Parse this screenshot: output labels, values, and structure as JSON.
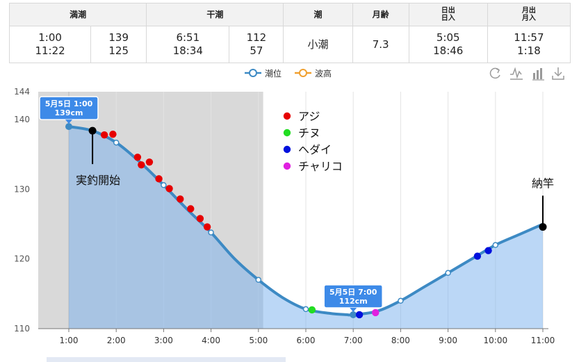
{
  "table": {
    "headers": {
      "high": "満潮",
      "low": "干潮",
      "tide": "潮",
      "moon_age": "月齢",
      "sun_line1": "日出",
      "sun_line2": "日入",
      "moon_line1": "月出",
      "moon_line2": "月入"
    },
    "high_times": [
      "1:00",
      "11:22"
    ],
    "high_levels": [
      "139",
      "125"
    ],
    "low_times": [
      "6:51",
      "18:34"
    ],
    "low_levels": [
      "112",
      "57"
    ],
    "tide_name": "小潮",
    "moon_age": "7.3",
    "sunrise": "5:05",
    "sunset": "18:46",
    "moonrise": "11:57",
    "moonset": "1:18"
  },
  "legend": {
    "tide_level": "潮位",
    "wave_height": "波高"
  },
  "toolbar": [
    "refresh-icon",
    "line-chart-icon",
    "bar-chart-icon",
    "download-icon"
  ],
  "chart_data": {
    "type": "line",
    "x_unit": "hour",
    "xlim": [
      1,
      11
    ],
    "ylim": [
      110,
      144
    ],
    "x_tick_labels": [
      "1:00",
      "2:00",
      "3:00",
      "4:00",
      "5:00",
      "6:00",
      "7:00",
      "8:00",
      "9:00",
      "10:00",
      "11:00"
    ],
    "x_ticks": [
      1,
      2,
      3,
      4,
      5,
      6,
      7,
      8,
      9,
      10,
      11
    ],
    "y_tick_labels": [
      "110",
      "120",
      "130",
      "140",
      "144"
    ],
    "y_ticks": [
      110,
      120,
      130,
      140,
      144
    ],
    "grid": true,
    "shaded_range": [
      1,
      5.1
    ],
    "series": [
      {
        "name": "潮位",
        "color": "#3d8ac4",
        "x": [
          1.0,
          1.5,
          2.0,
          2.5,
          3.0,
          3.5,
          4.0,
          4.5,
          5.0,
          5.5,
          6.0,
          6.5,
          6.85,
          7.0,
          7.5,
          8.0,
          8.5,
          9.0,
          9.5,
          10.0,
          10.5,
          11.0
        ],
        "y": [
          139.0,
          138.4,
          136.7,
          133.9,
          130.6,
          127.1,
          123.8,
          120.0,
          117.0,
          114.5,
          112.8,
          112.2,
          112.0,
          112.0,
          112.5,
          114.0,
          116.0,
          118.0,
          120.0,
          122.0,
          123.5,
          125.0
        ],
        "markers_x": [
          2,
          3,
          4,
          5,
          6,
          8,
          9,
          10
        ]
      }
    ],
    "tooltips": [
      {
        "x": 1.0,
        "y": 139,
        "line1": "5月5日 1:00",
        "line2": "139cm"
      },
      {
        "x": 7.0,
        "y": 112,
        "line1": "5月5日 7:00",
        "line2": "112cm"
      }
    ],
    "fish_legend": [
      {
        "label": "アジ",
        "color": "#e60000"
      },
      {
        "label": "チヌ",
        "color": "#22dd22"
      },
      {
        "label": "ヘダイ",
        "color": "#0011dd"
      },
      {
        "label": "チャリコ",
        "color": "#e020e0"
      }
    ],
    "catches": [
      {
        "x": 1.75,
        "y": 137.8,
        "color": "#e60000"
      },
      {
        "x": 1.93,
        "y": 137.9,
        "color": "#e60000"
      },
      {
        "x": 2.45,
        "y": 134.6,
        "color": "#e60000"
      },
      {
        "x": 2.53,
        "y": 133.5,
        "color": "#e60000"
      },
      {
        "x": 2.7,
        "y": 133.9,
        "color": "#e60000"
      },
      {
        "x": 2.9,
        "y": 131.5,
        "color": "#e60000"
      },
      {
        "x": 3.12,
        "y": 130.1,
        "color": "#e60000"
      },
      {
        "x": 3.35,
        "y": 128.6,
        "color": "#e60000"
      },
      {
        "x": 3.57,
        "y": 127.2,
        "color": "#e60000"
      },
      {
        "x": 3.77,
        "y": 125.8,
        "color": "#e60000"
      },
      {
        "x": 3.92,
        "y": 124.6,
        "color": "#e60000"
      },
      {
        "x": 6.13,
        "y": 112.7,
        "color": "#22dd22"
      },
      {
        "x": 7.13,
        "y": 112.0,
        "color": "#0011dd"
      },
      {
        "x": 7.47,
        "y": 112.3,
        "color": "#e020e0"
      },
      {
        "x": 9.62,
        "y": 120.4,
        "color": "#0011dd"
      },
      {
        "x": 9.85,
        "y": 121.2,
        "color": "#0011dd"
      }
    ],
    "events": [
      {
        "x": 1.5,
        "y": 138.4,
        "label": "実釣開始",
        "position": "below"
      },
      {
        "x": 11.0,
        "y": 124.6,
        "label": "納竿",
        "position": "above"
      }
    ]
  }
}
